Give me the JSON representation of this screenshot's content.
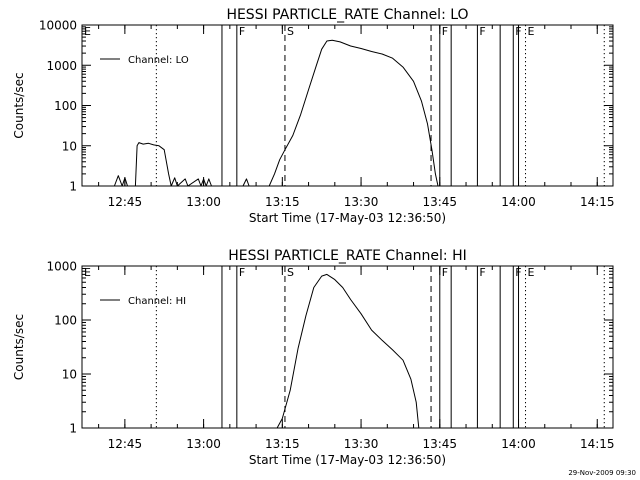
{
  "colors": {
    "background": "#ffffff",
    "ink": "#000000"
  },
  "footer_timestamp": "29-Nov-2009 09:30",
  "chart_data": [
    {
      "type": "line",
      "title": "HESSI PARTICLE_RATE Channel: LO",
      "xlabel": "Start Time (17-May-03 12:36:50)",
      "ylabel": "Counts/sec",
      "yscale": "log",
      "ylim": [
        1,
        10000
      ],
      "yticks": [
        {
          "v": 1,
          "label": "1"
        },
        {
          "v": 10,
          "label": "10"
        },
        {
          "v": 100,
          "label": "100"
        },
        {
          "v": 1000,
          "label": "1000"
        },
        {
          "v": 10000,
          "label": "10000"
        }
      ],
      "xlim": [
        "12:36:50",
        "14:18:00"
      ],
      "xticks": [
        "12:45",
        "13:00",
        "13:15",
        "13:30",
        "13:45",
        "14:00",
        "14:15"
      ],
      "legend": {
        "label": "Channel: LO",
        "placement": "top-left"
      },
      "markers": [
        {
          "time": "12:36:50",
          "label": "E",
          "style": "dotted"
        },
        {
          "time": "12:51:00",
          "label": "",
          "style": "dotted"
        },
        {
          "time": "13:03:30",
          "label": "",
          "style": "solid"
        },
        {
          "time": "13:06:20",
          "label": "F",
          "style": "solid"
        },
        {
          "time": "13:15:30",
          "label": "S",
          "style": "dashed"
        },
        {
          "time": "13:43:20",
          "label": "",
          "style": "dashed"
        },
        {
          "time": "13:45:00",
          "label": "F",
          "style": "solid"
        },
        {
          "time": "13:47:10",
          "label": "",
          "style": "solid"
        },
        {
          "time": "13:52:10",
          "label": "F",
          "style": "solid"
        },
        {
          "time": "13:56:30",
          "label": "",
          "style": "solid"
        },
        {
          "time": "13:59:00",
          "label": "F",
          "style": "solid"
        },
        {
          "time": "14:00:00",
          "label": "",
          "style": "solid"
        },
        {
          "time": "14:01:20",
          "label": "E",
          "style": "dotted"
        },
        {
          "time": "14:16:20",
          "label": "",
          "style": "dotted"
        }
      ],
      "series": [
        {
          "name": "Channel: LO",
          "points": [
            [
              "12:43:00",
              1
            ],
            [
              "12:43:45",
              1.8
            ],
            [
              "12:44:30",
              1
            ],
            [
              "12:45:00",
              1.6
            ],
            [
              "12:45:30",
              1
            ],
            [
              "12:47:00",
              1
            ],
            [
              "12:47:20",
              10
            ],
            [
              "12:47:40",
              12
            ],
            [
              "12:48:30",
              11
            ],
            [
              "12:49:30",
              11.5
            ],
            [
              "12:50:30",
              10.5
            ],
            [
              "12:51:30",
              10
            ],
            [
              "12:52:30",
              8
            ],
            [
              "12:53:20",
              2
            ],
            [
              "12:53:50",
              1
            ],
            [
              "12:54:30",
              1.6
            ],
            [
              "12:55:00",
              1
            ],
            [
              "12:56:30",
              1.5
            ],
            [
              "12:57:00",
              1
            ],
            [
              "12:59:00",
              1.5
            ],
            [
              "12:59:30",
              1
            ],
            [
              "13:00:00",
              1.5
            ],
            [
              "13:00:30",
              1
            ],
            [
              "13:01:00",
              1.5
            ],
            [
              "13:01:30",
              1
            ],
            [
              "13:07:30",
              1
            ],
            [
              "13:08:10",
              1.5
            ],
            [
              "13:08:40",
              1
            ],
            [
              "13:12:30",
              1
            ],
            [
              "13:13:30",
              2
            ],
            [
              "13:14:30",
              4.5
            ],
            [
              "13:15:30",
              8
            ],
            [
              "13:17:00",
              18
            ],
            [
              "13:18:30",
              60
            ],
            [
              "13:20:00",
              250
            ],
            [
              "13:21:30",
              1000
            ],
            [
              "13:22:30",
              2500
            ],
            [
              "13:23:30",
              4000
            ],
            [
              "13:24:30",
              4200
            ],
            [
              "13:26:00",
              3800
            ],
            [
              "13:28:00",
              3000
            ],
            [
              "13:30:00",
              2600
            ],
            [
              "13:32:00",
              2200
            ],
            [
              "13:34:00",
              1900
            ],
            [
              "13:36:00",
              1500
            ],
            [
              "13:38:00",
              900
            ],
            [
              "13:40:00",
              400
            ],
            [
              "13:41:30",
              130
            ],
            [
              "13:42:40",
              35
            ],
            [
              "13:43:30",
              8
            ],
            [
              "13:44:10",
              2
            ],
            [
              "13:44:40",
              1
            ]
          ]
        }
      ]
    },
    {
      "type": "line",
      "title": "HESSI PARTICLE_RATE Channel: HI",
      "xlabel": "Start Time (17-May-03 12:36:50)",
      "ylabel": "Counts/sec",
      "yscale": "log",
      "ylim": [
        1,
        1000
      ],
      "yticks": [
        {
          "v": 1,
          "label": "1"
        },
        {
          "v": 10,
          "label": "10"
        },
        {
          "v": 100,
          "label": "100"
        },
        {
          "v": 1000,
          "label": "1000"
        }
      ],
      "xlim": [
        "12:36:50",
        "14:18:00"
      ],
      "xticks": [
        "12:45",
        "13:00",
        "13:15",
        "13:30",
        "13:45",
        "14:00",
        "14:15"
      ],
      "legend": {
        "label": "Channel: HI",
        "placement": "top-left"
      },
      "markers": [
        {
          "time": "12:36:50",
          "label": "E",
          "style": "dotted"
        },
        {
          "time": "12:51:00",
          "label": "",
          "style": "dotted"
        },
        {
          "time": "13:03:30",
          "label": "",
          "style": "solid"
        },
        {
          "time": "13:06:20",
          "label": "F",
          "style": "solid"
        },
        {
          "time": "13:15:30",
          "label": "S",
          "style": "dashed"
        },
        {
          "time": "13:43:20",
          "label": "",
          "style": "dashed"
        },
        {
          "time": "13:45:00",
          "label": "F",
          "style": "solid"
        },
        {
          "time": "13:47:10",
          "label": "",
          "style": "solid"
        },
        {
          "time": "13:52:10",
          "label": "F",
          "style": "solid"
        },
        {
          "time": "13:56:30",
          "label": "",
          "style": "solid"
        },
        {
          "time": "13:59:00",
          "label": "F",
          "style": "solid"
        },
        {
          "time": "14:00:00",
          "label": "",
          "style": "solid"
        },
        {
          "time": "14:01:20",
          "label": "E",
          "style": "dotted"
        },
        {
          "time": "14:16:20",
          "label": "",
          "style": "dotted"
        }
      ],
      "series": [
        {
          "name": "Channel: HI",
          "points": [
            [
              "13:14:00",
              1
            ],
            [
              "13:15:00",
              1.5
            ],
            [
              "13:16:30",
              5
            ],
            [
              "13:18:00",
              30
            ],
            [
              "13:19:30",
              120
            ],
            [
              "13:21:00",
              400
            ],
            [
              "13:22:30",
              650
            ],
            [
              "13:23:30",
              700
            ],
            [
              "13:25:00",
              560
            ],
            [
              "13:26:30",
              400
            ],
            [
              "13:28:00",
              240
            ],
            [
              "13:30:00",
              130
            ],
            [
              "13:32:00",
              65
            ],
            [
              "13:34:00",
              42
            ],
            [
              "13:36:00",
              28
            ],
            [
              "13:38:00",
              18
            ],
            [
              "13:39:30",
              8
            ],
            [
              "13:40:30",
              3
            ],
            [
              "13:41:00",
              1
            ]
          ]
        }
      ]
    }
  ]
}
